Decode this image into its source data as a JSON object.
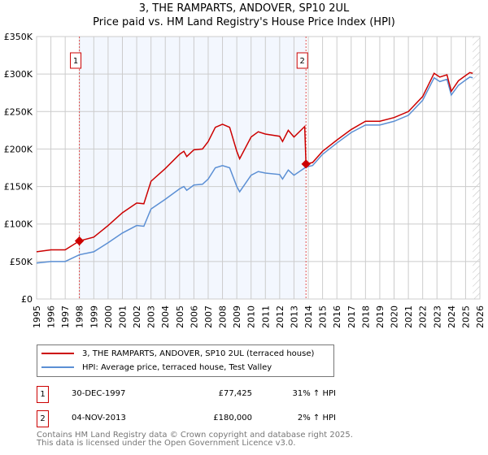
{
  "title": "3, THE RAMPARTS, ANDOVER, SP10 2UL",
  "subtitle": "Price paid vs. HM Land Registry's House Price Index (HPI)",
  "chart_data": {
    "type": "line",
    "ylim": [
      0,
      350000
    ],
    "xlim": [
      1995,
      2026
    ],
    "yticks": [
      {
        "v": 0,
        "label": "£0"
      },
      {
        "v": 50000,
        "label": "£50K"
      },
      {
        "v": 100000,
        "label": "£100K"
      },
      {
        "v": 150000,
        "label": "£150K"
      },
      {
        "v": 200000,
        "label": "£200K"
      },
      {
        "v": 250000,
        "label": "£250K"
      },
      {
        "v": 300000,
        "label": "£300K"
      },
      {
        "v": 350000,
        "label": "£350K"
      }
    ],
    "xticks": [
      "1995",
      "1996",
      "1997",
      "1998",
      "1999",
      "2000",
      "2001",
      "2002",
      "2003",
      "2004",
      "2005",
      "2006",
      "2007",
      "2008",
      "2009",
      "2010",
      "2011",
      "2012",
      "2013",
      "2014",
      "2015",
      "2016",
      "2017",
      "2018",
      "2019",
      "2020",
      "2021",
      "2022",
      "2023",
      "2024",
      "2025",
      "2026"
    ],
    "series": [
      {
        "name": "3, THE RAMPARTS, ANDOVER, SP10 2UL (terraced house)",
        "color": "#cc0000",
        "x": [
          1995,
          1996,
          1997,
          1997.99,
          1999,
          2000,
          2001,
          2002,
          2002.5,
          2003,
          2004,
          2005,
          2005.3,
          2005.5,
          2006,
          2006.6,
          2007,
          2007.5,
          2008,
          2008.5,
          2009,
          2009.2,
          2010,
          2010.5,
          2011,
          2012,
          2012.2,
          2012.6,
          2013,
          2013.75,
          2013.84,
          2014.3,
          2015,
          2016,
          2017,
          2018,
          2019,
          2020,
          2021,
          2022,
          2022.8,
          2023.2,
          2023.7,
          2024,
          2024.5,
          2025,
          2025.3,
          2025.5
        ],
        "y": [
          63000,
          65500,
          65500,
          77425,
          82500,
          98000,
          115000,
          128000,
          127000,
          157000,
          174000,
          193000,
          197000,
          190000,
          199000,
          200000,
          210000,
          229000,
          233000,
          229000,
          197000,
          187000,
          216000,
          223000,
          220000,
          217000,
          210000,
          225000,
          216000,
          230000,
          180000,
          182000,
          197000,
          212000,
          226000,
          237000,
          237000,
          242000,
          250000,
          270000,
          301000,
          296000,
          299000,
          277000,
          291000,
          298000,
          302000,
          301000
        ]
      },
      {
        "name": "HPI: Average price, terraced house, Test Valley",
        "color": "#5b8fd4",
        "x": [
          1995,
          1996,
          1997,
          1997.99,
          1999,
          2000,
          2001,
          2002,
          2002.5,
          2003,
          2004,
          2005,
          2005.3,
          2005.5,
          2006,
          2006.6,
          2007,
          2007.5,
          2008,
          2008.5,
          2009,
          2009.2,
          2010,
          2010.5,
          2011,
          2012,
          2012.2,
          2012.6,
          2013,
          2013.84,
          2014.3,
          2015,
          2016,
          2017,
          2018,
          2019,
          2020,
          2021,
          2022,
          2022.8,
          2023.2,
          2023.7,
          2024,
          2024.5,
          2025,
          2025.3,
          2025.5
        ],
        "y": [
          48000,
          50000,
          50000,
          59000,
          63000,
          75000,
          88000,
          98000,
          97000,
          120000,
          133000,
          147000,
          150000,
          145000,
          152000,
          153000,
          160000,
          175000,
          178000,
          175000,
          150000,
          143000,
          165000,
          170000,
          168000,
          166000,
          160000,
          172000,
          165000,
          176000,
          178000,
          193000,
          208000,
          222000,
          232000,
          232000,
          237000,
          245000,
          265000,
          295000,
          290000,
          293000,
          272000,
          285000,
          292000,
          296000,
          295000
        ]
      }
    ],
    "sales": [
      {
        "n": "1",
        "x": 1997.99,
        "y": 77425
      },
      {
        "n": "2",
        "x": 2013.84,
        "y": 180000
      }
    ],
    "forecast_from": 2025.5
  },
  "legend": [
    {
      "label": "3, THE RAMPARTS, ANDOVER, SP10 2UL (terraced house)",
      "color": "#cc0000"
    },
    {
      "label": "HPI: Average price, terraced house, Test Valley",
      "color": "#5b8fd4"
    }
  ],
  "transactions": [
    {
      "n": "1",
      "date": "30-DEC-1997",
      "price": "£77,425",
      "hpi": "31% ↑ HPI"
    },
    {
      "n": "2",
      "date": "04-NOV-2013",
      "price": "£180,000",
      "hpi": "2% ↑ HPI"
    }
  ],
  "footer": [
    "Contains HM Land Registry data © Crown copyright and database right 2025.",
    "This data is licensed under the Open Government Licence v3.0."
  ]
}
